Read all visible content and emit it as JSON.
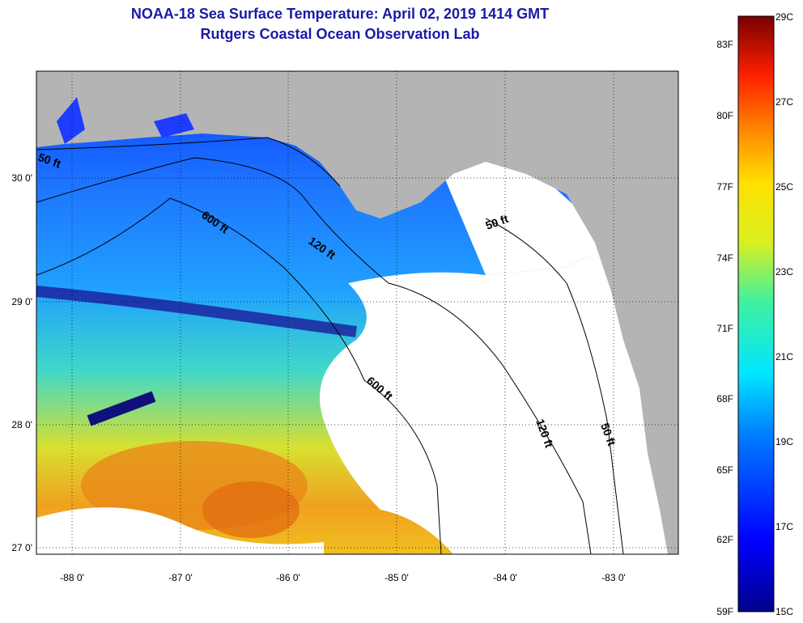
{
  "title": "NOAA-18 Sea Surface Temperature:  April 02, 2019 1414 GMT",
  "subtitle": "Rutgers Coastal Ocean Observation Lab",
  "lon_ticks": [
    "-88 0'",
    "-87 0'",
    "-86 0'",
    "-85 0'",
    "-84 0'",
    "-83 0'"
  ],
  "lat_ticks": [
    "30 0'",
    "29 0'",
    "28 0'",
    "27 0'"
  ],
  "contours": [
    "50 ft",
    "600 ft",
    "120 ft",
    "600 ft",
    "50 ft",
    "120 ft",
    "50 ft"
  ],
  "colorbar": {
    "fahrenheit": [
      "83F",
      "80F",
      "77F",
      "74F",
      "71F",
      "68F",
      "65F",
      "62F",
      "59F"
    ],
    "celsius": [
      "29C",
      "27C",
      "25C",
      "23C",
      "21C",
      "19C",
      "17C",
      "15C"
    ]
  },
  "colors": {
    "land": "#b4b4b4",
    "cloud": "#ffffff",
    "cold": "#00008c",
    "warm": "#e67800"
  }
}
